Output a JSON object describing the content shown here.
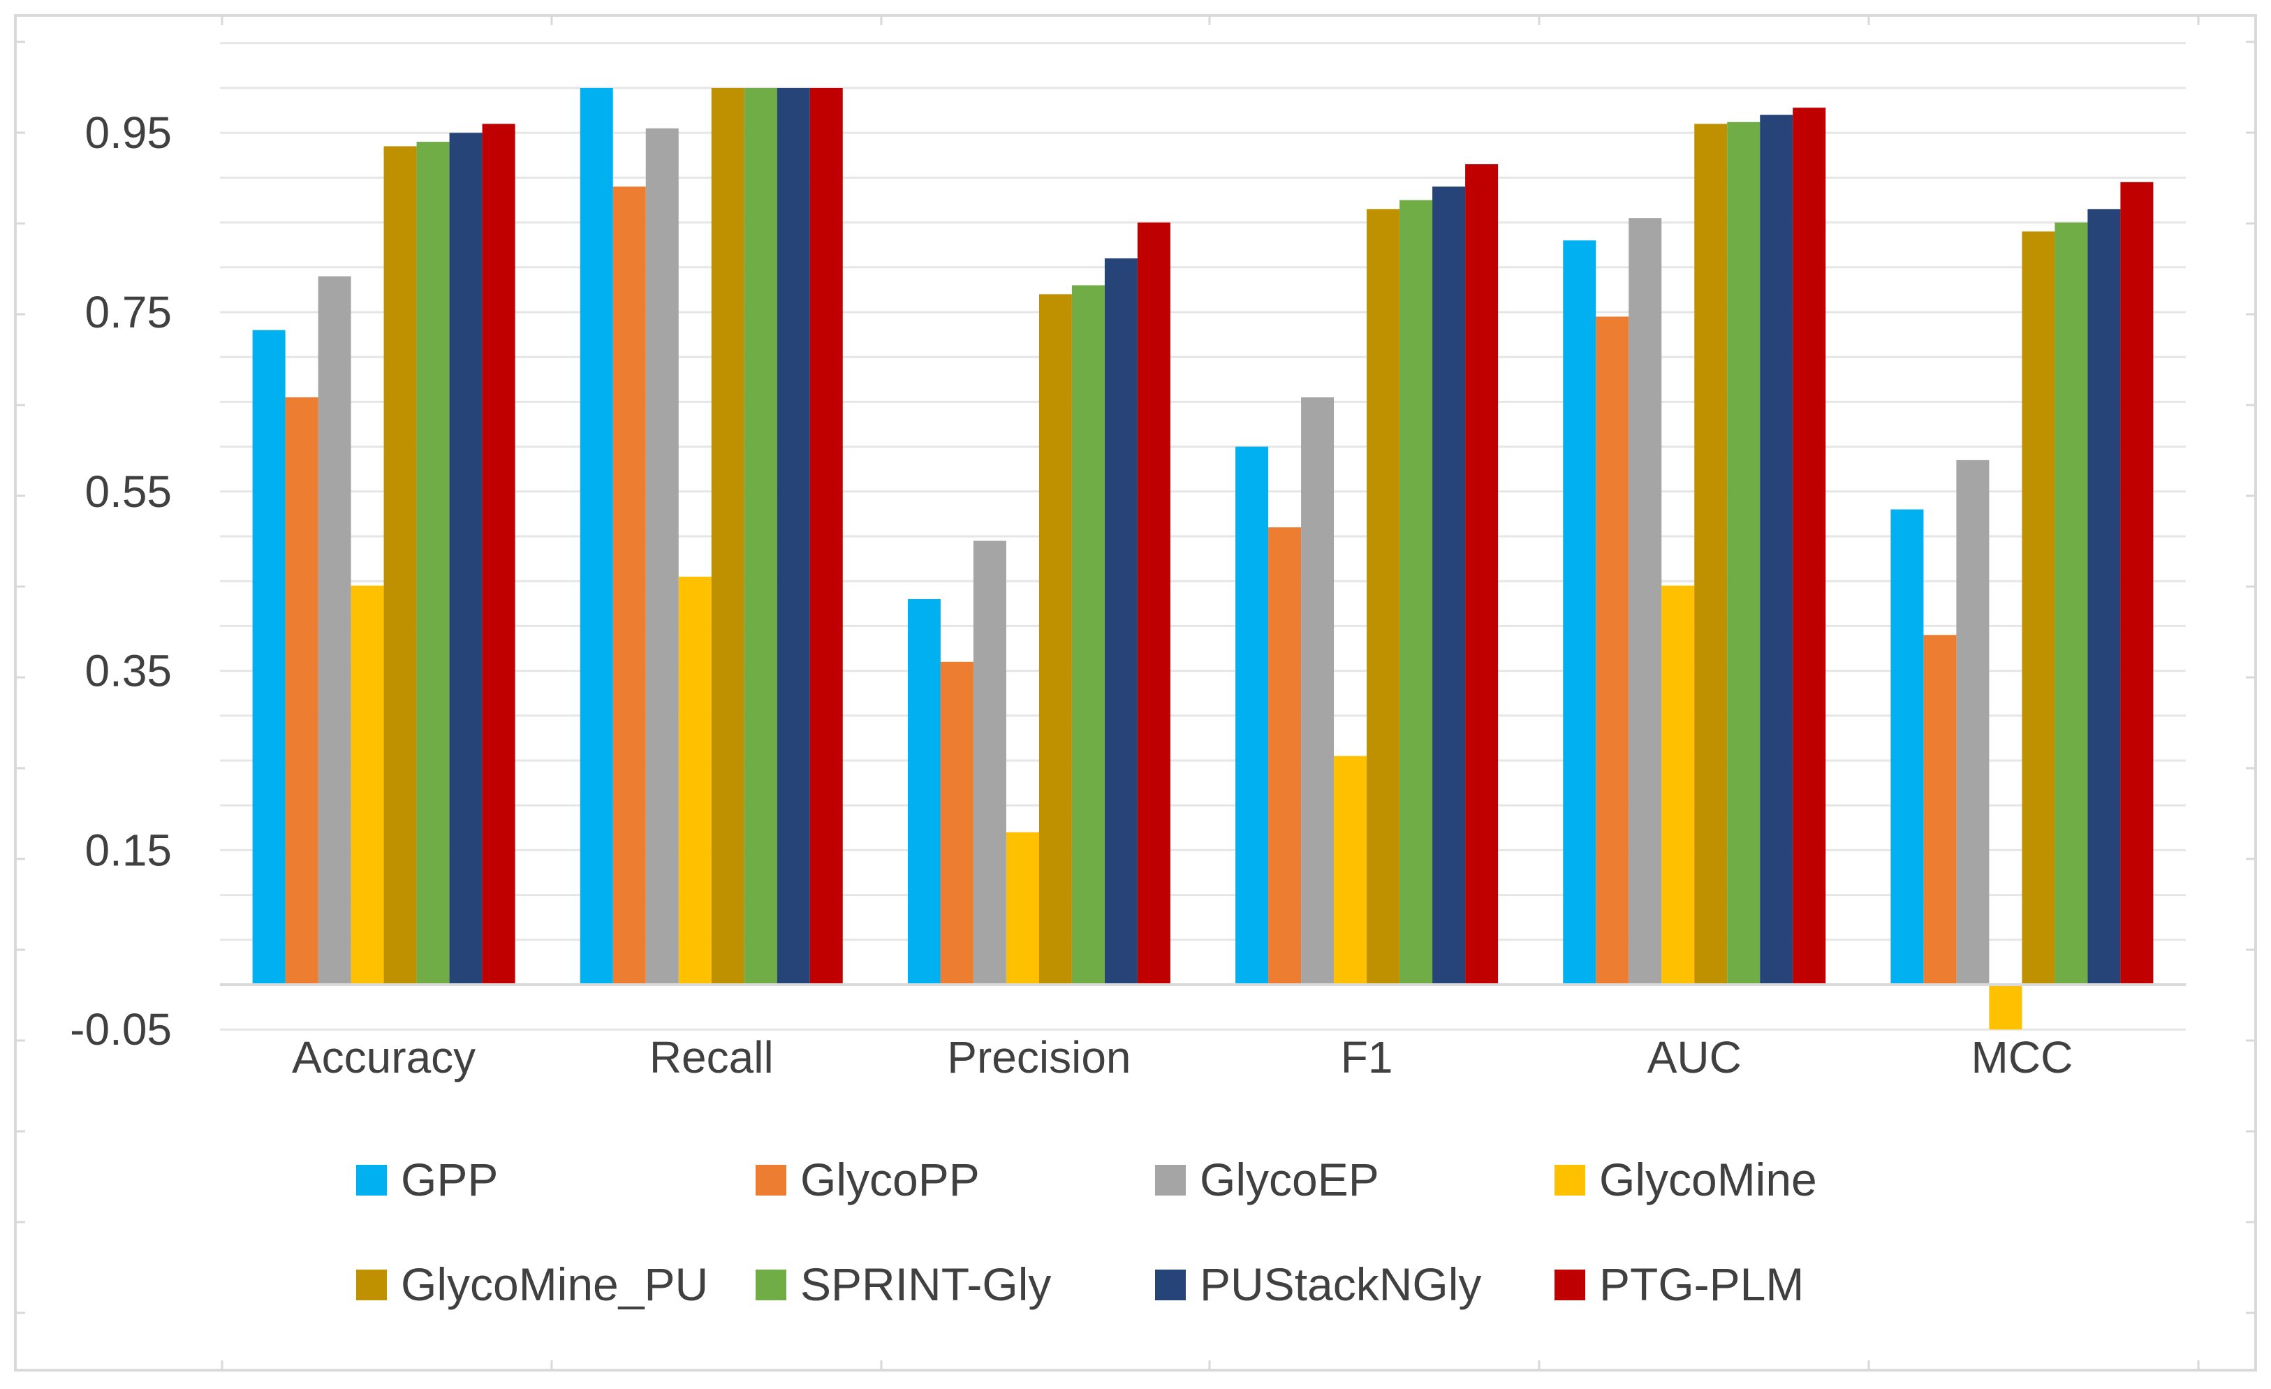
{
  "chart_data": {
    "type": "bar",
    "title": "",
    "xlabel": "",
    "ylabel": "",
    "ylim": [
      -0.1,
      1.05
    ],
    "yticks": [
      -0.05,
      0.15,
      0.35,
      0.55,
      0.75,
      0.95
    ],
    "ytick_labels": [
      "-0.05",
      "0.15",
      "0.35",
      "0.55",
      "0.75",
      "0.95"
    ],
    "grid": true,
    "legend_position": "bottom",
    "categories": [
      "Accuracy",
      "Recall",
      "Precision",
      "F1",
      "AUC",
      "MCC"
    ],
    "series": [
      {
        "name": "GPP",
        "color": "#00B0F0",
        "values": [
          0.73,
          1.0,
          0.43,
          0.6,
          0.83,
          0.53
        ]
      },
      {
        "name": "GlycoPP",
        "color": "#ED7D31",
        "values": [
          0.655,
          0.89,
          0.36,
          0.51,
          0.745,
          0.39
        ]
      },
      {
        "name": "GlycoEP",
        "color": "#A5A5A5",
        "values": [
          0.79,
          0.955,
          0.495,
          0.655,
          0.855,
          0.585
        ]
      },
      {
        "name": "GlycoMine",
        "color": "#FFC000",
        "values": [
          0.445,
          0.455,
          0.17,
          0.255,
          0.445,
          -0.05
        ]
      },
      {
        "name": "GlycoMine_PU",
        "color": "#BF9000",
        "values": [
          0.935,
          1.0,
          0.77,
          0.865,
          0.96,
          0.84
        ]
      },
      {
        "name": "SPRINT-Gly",
        "color": "#70AD47",
        "values": [
          0.94,
          1.0,
          0.78,
          0.875,
          0.962,
          0.85
        ]
      },
      {
        "name": "PUStackNGly",
        "color": "#264478",
        "values": [
          0.95,
          1.0,
          0.81,
          0.89,
          0.97,
          0.865
        ]
      },
      {
        "name": "PTG-PLM",
        "color": "#C00000",
        "values": [
          0.96,
          1.0,
          0.85,
          0.915,
          0.978,
          0.895
        ]
      }
    ]
  }
}
